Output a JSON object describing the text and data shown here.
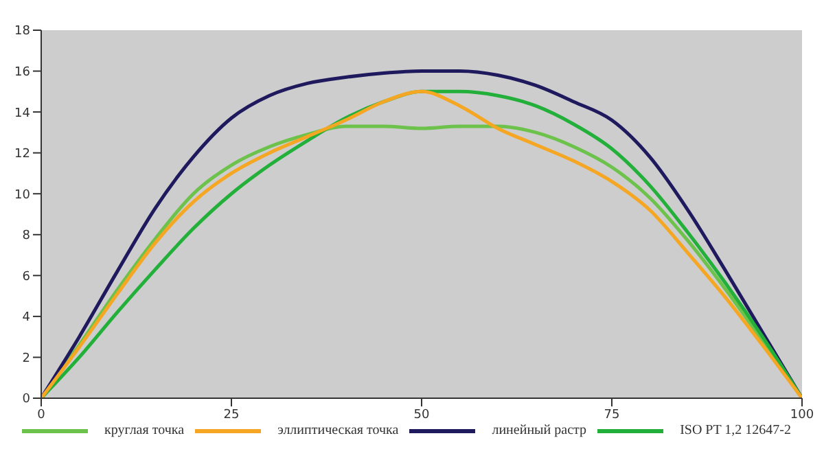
{
  "chart_data": {
    "type": "line",
    "x": [
      0,
      5,
      10,
      15,
      20,
      25,
      30,
      35,
      40,
      45,
      50,
      55,
      60,
      65,
      70,
      75,
      80,
      85,
      90,
      95,
      100
    ],
    "series": [
      {
        "name": "круглая точка",
        "color": "#6cc24a",
        "values": [
          0,
          2.6,
          5.3,
          7.8,
          10.0,
          11.4,
          12.3,
          12.9,
          13.3,
          13.3,
          13.2,
          13.3,
          13.3,
          13.0,
          12.3,
          11.3,
          9.8,
          7.7,
          5.3,
          2.7,
          0
        ]
      },
      {
        "name": "эллиптическая точка",
        "color": "#f5a623",
        "values": [
          0,
          2.5,
          5.1,
          7.6,
          9.6,
          11.0,
          12.0,
          12.8,
          13.6,
          14.5,
          15.0,
          14.3,
          13.2,
          12.4,
          11.6,
          10.6,
          9.2,
          7.1,
          4.9,
          2.5,
          0
        ]
      },
      {
        "name": "линейный растр",
        "color": "#1f1a5e",
        "values": [
          0,
          3.0,
          6.2,
          9.3,
          11.8,
          13.7,
          14.8,
          15.4,
          15.7,
          15.9,
          16.0,
          16.0,
          15.8,
          15.3,
          14.5,
          13.6,
          11.8,
          9.2,
          6.2,
          3.1,
          0
        ]
      },
      {
        "name": "ISO PT 1,2  12647-2",
        "color": "#22b03a",
        "values": [
          0,
          2.0,
          4.2,
          6.3,
          8.3,
          10.0,
          11.4,
          12.6,
          13.7,
          14.5,
          15.0,
          15.0,
          14.8,
          14.3,
          13.4,
          12.2,
          10.4,
          8.1,
          5.6,
          2.9,
          0
        ]
      }
    ],
    "xlim": [
      0,
      100
    ],
    "xticks": [
      0,
      25,
      50,
      75,
      100
    ],
    "ylim": [
      0,
      18
    ],
    "yticks": [
      0,
      2,
      4,
      6,
      8,
      10,
      12,
      14,
      16,
      18
    ],
    "grid": false,
    "legend": "bottom",
    "marker": "none",
    "line_style": "solid"
  }
}
